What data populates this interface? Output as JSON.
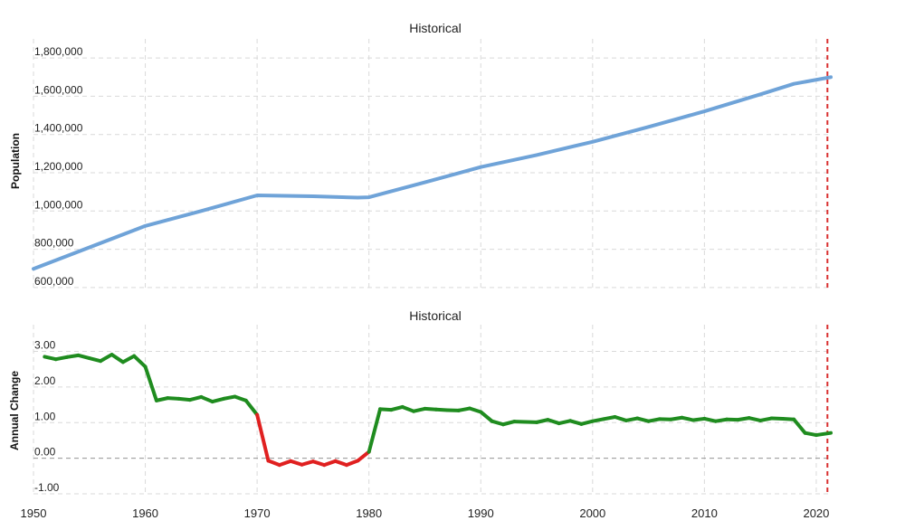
{
  "chart_data": [
    {
      "type": "line",
      "id": "population",
      "title": "Historical",
      "xlabel": "",
      "ylabel": "Population",
      "xlim": [
        1950,
        2021.3
      ],
      "ylim": [
        590000,
        1900000
      ],
      "yticks": [
        600000,
        800000,
        1000000,
        1200000,
        1400000,
        1600000,
        1800000
      ],
      "ytick_labels": [
        "600,000",
        "800,000",
        "1,000,000",
        "1,200,000",
        "1,400,000",
        "1,600,000",
        "1,800,000"
      ],
      "xgrid": [
        1950,
        1960,
        1970,
        1980,
        1990,
        2000,
        2010,
        2020
      ],
      "reference_line_x": 2021,
      "series": [
        {
          "name": "Population",
          "color": "#6fa3d8",
          "x": [
            1950,
            1960,
            1965,
            1970,
            1975,
            1979,
            1980,
            1985,
            1990,
            1995,
            2000,
            2005,
            2010,
            2015,
            2018,
            2021.3
          ],
          "values": [
            698000,
            922000,
            1000000,
            1082000,
            1077000,
            1070000,
            1072000,
            1150000,
            1230000,
            1293000,
            1362000,
            1440000,
            1521000,
            1610000,
            1665000,
            1700000
          ]
        }
      ]
    },
    {
      "type": "line",
      "id": "annual-change",
      "title": "Historical",
      "xlabel": "",
      "ylabel": "Annual Change",
      "xlim": [
        1950,
        2021.3
      ],
      "ylim": [
        -1.05,
        3.75
      ],
      "yticks": [
        -1,
        0,
        1,
        2,
        3
      ],
      "ytick_labels": [
        "-1.00",
        "0.00",
        "1.00",
        "2.00",
        "3.00"
      ],
      "xticks": [
        1950,
        1960,
        1970,
        1980,
        1990,
        2000,
        2010,
        2020
      ],
      "xtick_labels": [
        "1950",
        "1960",
        "1970",
        "1980",
        "1990",
        "2000",
        "2010",
        "2020"
      ],
      "reference_line_x": 2021,
      "zero_line": true,
      "positive_color": "#1f8c1f",
      "negative_color": "#e02020",
      "series": [
        {
          "name": "Annual Change",
          "x": [
            1951,
            1952,
            1953,
            1954,
            1955,
            1956,
            1957,
            1958,
            1959,
            1960,
            1961,
            1962,
            1963,
            1964,
            1965,
            1966,
            1967,
            1968,
            1969,
            1970,
            1971,
            1972,
            1973,
            1974,
            1975,
            1976,
            1977,
            1978,
            1979,
            1980,
            1981,
            1982,
            1983,
            1984,
            1985,
            1986,
            1987,
            1988,
            1989,
            1990,
            1991,
            1992,
            1993,
            1994,
            1995,
            1996,
            1997,
            1998,
            1999,
            2000,
            2001,
            2002,
            2003,
            2004,
            2005,
            2006,
            2007,
            2008,
            2009,
            2010,
            2011,
            2012,
            2013,
            2014,
            2015,
            2016,
            2017,
            2018,
            2019,
            2020,
            2021.3
          ],
          "values": [
            2.85,
            2.78,
            2.84,
            2.89,
            2.81,
            2.73,
            2.91,
            2.7,
            2.87,
            2.57,
            1.62,
            1.69,
            1.67,
            1.64,
            1.72,
            1.59,
            1.67,
            1.73,
            1.62,
            1.22,
            -0.07,
            -0.19,
            -0.08,
            -0.18,
            -0.09,
            -0.19,
            -0.08,
            -0.19,
            -0.07,
            0.18,
            1.38,
            1.36,
            1.44,
            1.32,
            1.39,
            1.37,
            1.35,
            1.34,
            1.4,
            1.3,
            1.04,
            0.95,
            1.03,
            1.02,
            1.01,
            1.08,
            0.98,
            1.05,
            0.96,
            1.04,
            1.1,
            1.16,
            1.06,
            1.12,
            1.04,
            1.1,
            1.09,
            1.14,
            1.07,
            1.11,
            1.04,
            1.09,
            1.08,
            1.13,
            1.06,
            1.12,
            1.11,
            1.09,
            0.71,
            0.65,
            0.71
          ]
        }
      ]
    }
  ]
}
